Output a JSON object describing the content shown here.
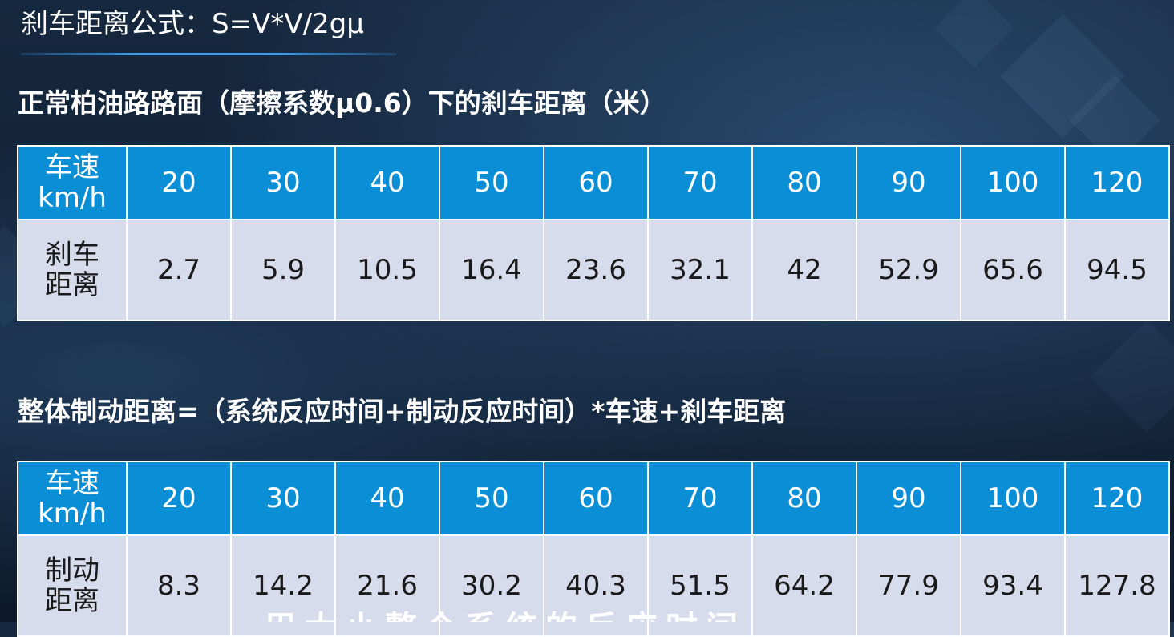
{
  "formula": "刹车距离公式：S=V*V/2gμ",
  "table1": {
    "heading": "正常柏油路路面（摩擦系数μ0.6）下的刹车距离（米）",
    "speed_label_line1": "车速",
    "speed_label_line2": "km/h",
    "value_label_line1": "刹车",
    "value_label_line2": "距离",
    "speeds": [
      "20",
      "30",
      "40",
      "50",
      "60",
      "70",
      "80",
      "90",
      "100",
      "120"
    ],
    "values": [
      "2.7",
      "5.9",
      "10.5",
      "16.4",
      "23.6",
      "32.1",
      "42",
      "52.9",
      "65.6",
      "94.5"
    ]
  },
  "table2": {
    "heading": "整体制动距离=（系统反应时间+制动反应时间）*车速+刹车距离",
    "speed_label_line1": "车速",
    "speed_label_line2": "km/h",
    "value_label_line1": "制动",
    "value_label_line2": "距离",
    "speeds": [
      "20",
      "30",
      "40",
      "50",
      "60",
      "70",
      "80",
      "90",
      "100",
      "120"
    ],
    "values": [
      "8.3",
      "14.2",
      "21.6",
      "30.2",
      "40.3",
      "51.5",
      "64.2",
      "77.9",
      "93.4",
      "127.8"
    ]
  },
  "subtitle_partial": "巴大小整个系统的反应时间"
}
